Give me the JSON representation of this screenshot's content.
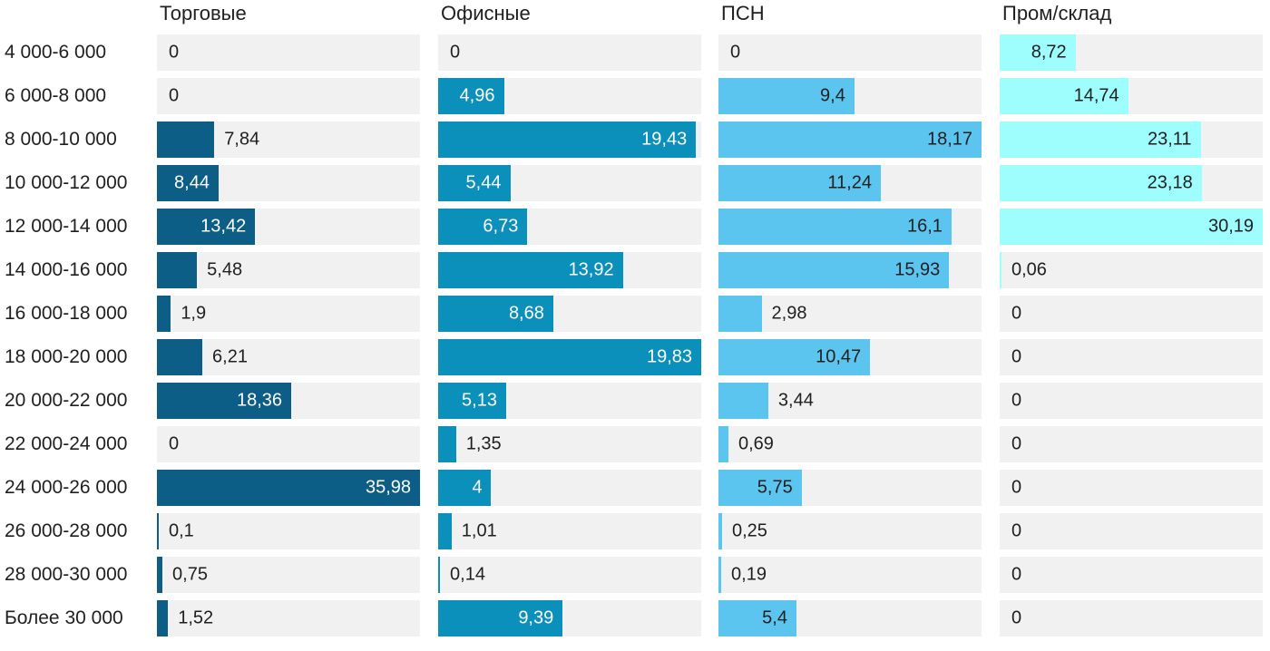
{
  "chart_data": {
    "type": "bar",
    "orientation": "horizontal",
    "title": "",
    "xlabel": "",
    "ylabel": "",
    "grid": false,
    "legend_position": "column-headers",
    "scaling": "each column scaled independently so its max value fills the full track width",
    "track_color": "#f1f1f2",
    "text_color": "#1f1f1f",
    "categories": [
      "4 000-6 000",
      "6 000-8 000",
      "8 000-10 000",
      "10 000-12 000",
      "12 000-14 000",
      "14 000-16 000",
      "16 000-18 000",
      "18 000-20 000",
      "20 000-22 000",
      "22 000-24 000",
      "24 000-26 000",
      "26 000-28 000",
      "28 000-30 000",
      "Более 30 000"
    ],
    "series": [
      {
        "name": "Торговые",
        "color": "#0d5e87",
        "inside_label_color": "#ffffff",
        "values": [
          0,
          0,
          7.84,
          8.44,
          13.42,
          5.48,
          1.9,
          6.21,
          18.36,
          0,
          35.98,
          0.1,
          0.75,
          1.52
        ],
        "labels": [
          "0",
          "0",
          "7,84",
          "8,44",
          "13,42",
          "5,48",
          "1,9",
          "6,21",
          "18,36",
          "0",
          "35,98",
          "0,1",
          "0,75",
          "1,52"
        ]
      },
      {
        "name": "Офисные",
        "color": "#0a90ba",
        "inside_label_color": "#ffffff",
        "values": [
          0,
          4.96,
          19.43,
          5.44,
          6.73,
          13.92,
          8.68,
          19.83,
          5.13,
          1.35,
          4,
          1.01,
          0.14,
          9.39
        ],
        "labels": [
          "0",
          "4,96",
          "19,43",
          "5,44",
          "6,73",
          "13,92",
          "8,68",
          "19,83",
          "5,13",
          "1,35",
          "4",
          "1,01",
          "0,14",
          "9,39"
        ]
      },
      {
        "name": "ПСН",
        "color": "#5bc5ef",
        "inside_label_color": "#1f1f1f",
        "values": [
          0,
          9.4,
          18.17,
          11.24,
          16.1,
          15.93,
          2.98,
          10.47,
          3.44,
          0.69,
          5.75,
          0.25,
          0.19,
          5.4
        ],
        "labels": [
          "0",
          "9,4",
          "18,17",
          "11,24",
          "16,1",
          "15,93",
          "2,98",
          "10,47",
          "3,44",
          "0,69",
          "5,75",
          "0,25",
          "0,19",
          "5,4"
        ]
      },
      {
        "name": "Пром/склад",
        "color": "#9efdfd",
        "inside_label_color": "#1f1f1f",
        "values": [
          8.72,
          14.74,
          23.11,
          23.18,
          30.19,
          0.06,
          0,
          0,
          0,
          0,
          0,
          0,
          0,
          0
        ],
        "labels": [
          "8,72",
          "14,74",
          "23,11",
          "23,18",
          "30,19",
          "0,06",
          "0",
          "0",
          "0",
          "0",
          "0",
          "0",
          "0",
          "0"
        ]
      }
    ]
  }
}
